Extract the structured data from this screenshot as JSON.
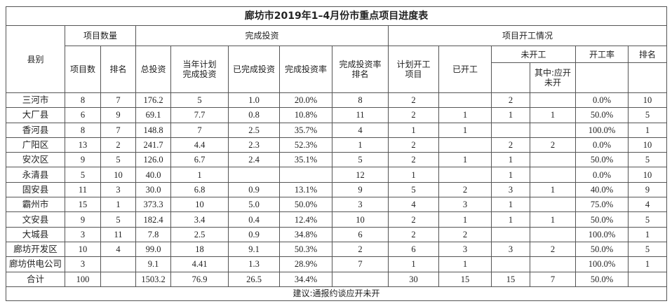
{
  "title": "廊坊市2019年1–4月份市重点项目进度表",
  "header": {
    "county": "县别",
    "group_count": "项目数量",
    "group_invest": "完成投资",
    "group_start": "项目开工情况",
    "count": "项目数",
    "count_rank": "排名",
    "total_invest": "总投资",
    "plan_invest": "当年计划\n完成投资",
    "done_invest": "已完成投资",
    "invest_rate": "完成投资率",
    "invest_rate_rank": "完成投资率\n排名",
    "plan_start": "计划开工\n项目",
    "started": "已开工",
    "not_started": "未开工",
    "should_start": "其中:应开\n未开",
    "start_rate": "开工率",
    "start_rank": "排名"
  },
  "table": {
    "rows": [
      [
        "三河市",
        "8",
        "7",
        "176.2",
        "5",
        "1.0",
        "20.0%",
        "8",
        "2",
        null,
        "2",
        null,
        "0.0%",
        "10"
      ],
      [
        "大厂县",
        "6",
        "9",
        "69.1",
        "7.7",
        "0.8",
        "10.8%",
        "11",
        "2",
        "1",
        "1",
        "1",
        "50.0%",
        "5"
      ],
      [
        "香河县",
        "8",
        "7",
        "148.8",
        "7",
        "2.5",
        "35.7%",
        "4",
        "1",
        "1",
        null,
        null,
        "100.0%",
        "1"
      ],
      [
        "广阳区",
        "13",
        "2",
        "241.7",
        "4.4",
        "2.3",
        "52.3%",
        "1",
        "2",
        null,
        "2",
        "2",
        "0.0%",
        "10"
      ],
      [
        "安次区",
        "9",
        "5",
        "126.0",
        "6.7",
        "2.4",
        "35.1%",
        "5",
        "2",
        "1",
        "1",
        null,
        "50.0%",
        "5"
      ],
      [
        "永清县",
        "5",
        "10",
        "40.0",
        "1",
        null,
        null,
        "12",
        "1",
        null,
        "1",
        null,
        "0.0%",
        "10"
      ],
      [
        "固安县",
        "11",
        "3",
        "30.0",
        "6.8",
        "0.9",
        "13.1%",
        "9",
        "5",
        "2",
        "3",
        "1",
        "40.0%",
        "9"
      ],
      [
        "霸州市",
        "15",
        "1",
        "373.3",
        "10",
        "5.0",
        "50.0%",
        "3",
        "4",
        "3",
        "1",
        null,
        "75.0%",
        "4"
      ],
      [
        "文安县",
        "9",
        "5",
        "182.4",
        "3.4",
        "0.4",
        "12.4%",
        "10",
        "2",
        "1",
        "1",
        "1",
        "50.0%",
        "5"
      ],
      [
        "大城县",
        "3",
        "11",
        "7.8",
        "2.5",
        "0.9",
        "34.8%",
        "6",
        "2",
        "2",
        null,
        null,
        "100.0%",
        "1"
      ],
      [
        "廊坊开发区",
        "10",
        "4",
        "99.0",
        "18",
        "9.1",
        "50.3%",
        "2",
        "6",
        "3",
        "3",
        "2",
        "50.0%",
        "5"
      ],
      [
        "廊坊供电公司",
        "3",
        null,
        "9.1",
        "4.41",
        "1.3",
        "28.9%",
        "7",
        "1",
        "1",
        null,
        null,
        "100.0%",
        "1"
      ],
      [
        "合计",
        "100",
        null,
        "1503.2",
        "76.9",
        "26.5",
        "34.4%",
        null,
        "30",
        "15",
        "15",
        "7",
        "50.0%",
        null
      ]
    ]
  },
  "footer": "建议:通报约谈应开未开"
}
